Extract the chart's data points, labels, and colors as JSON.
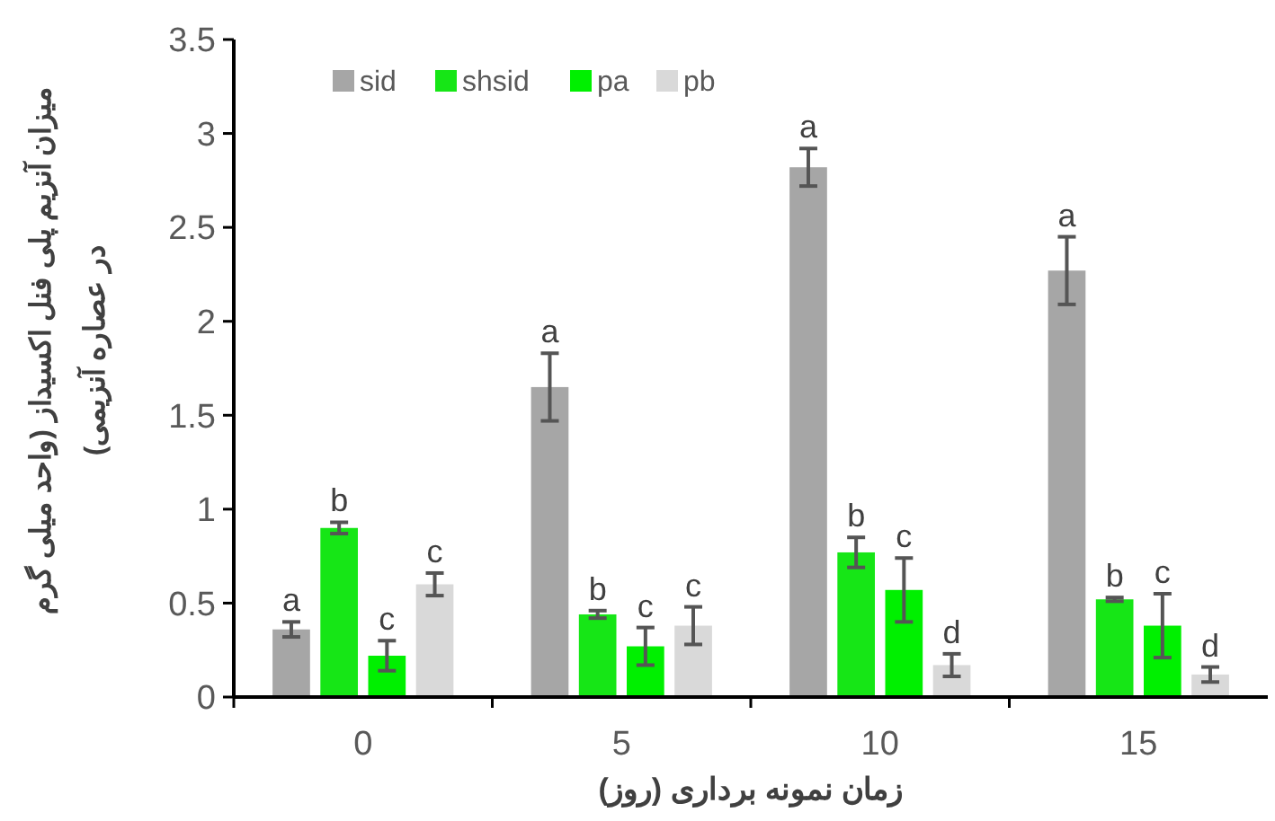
{
  "chart_data": {
    "type": "bar",
    "xlabel": "زمان نمونه برداری (روز)",
    "ylabel": "میزان آنزیم پلی فنل اکسیداز (واحد میلی گرم\nدر عصاره آنزیمی)",
    "categories": [
      "0",
      "5",
      "10",
      "15"
    ],
    "series": [
      {
        "name": "sid",
        "color": "#a6a6a6",
        "values": [
          0.36,
          1.65,
          2.82,
          2.27
        ],
        "errors": [
          0.04,
          0.18,
          0.1,
          0.18
        ]
      },
      {
        "name": "shsid",
        "color": "#16e616",
        "values": [
          0.9,
          0.44,
          0.77,
          0.52
        ],
        "errors": [
          0.03,
          0.02,
          0.08,
          0.01
        ]
      },
      {
        "name": "pa",
        "color": "#00f000",
        "values": [
          0.22,
          0.27,
          0.57,
          0.38
        ],
        "errors": [
          0.08,
          0.1,
          0.17,
          0.17
        ]
      },
      {
        "name": "pb",
        "color": "#d9d9d9",
        "values": [
          0.6,
          0.38,
          0.17,
          0.12
        ],
        "errors": [
          0.06,
          0.1,
          0.06,
          0.04
        ]
      }
    ],
    "annotations": [
      "a",
      "b",
      "c",
      "c",
      "a",
      "b",
      "c",
      "c",
      "a",
      "b",
      "c",
      "d",
      "a",
      "b",
      "c",
      "d"
    ],
    "ylim": [
      0,
      3.5
    ],
    "yticks": [
      0,
      0.5,
      1,
      1.5,
      2,
      2.5,
      3,
      3.5
    ],
    "legend": "top left",
    "grid": false
  }
}
